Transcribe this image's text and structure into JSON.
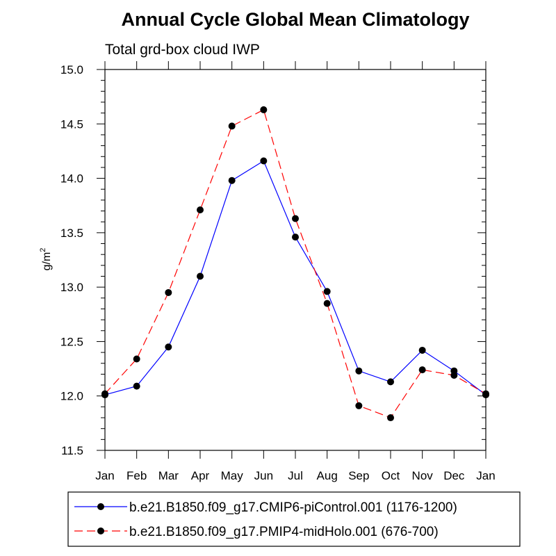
{
  "chart_data": {
    "type": "line",
    "title": "Annual Cycle Global Mean Climatology",
    "subtitle": "Total grd-box cloud IWP",
    "ylabel": "g/m",
    "ylabel_sup": "2",
    "xlabel": "",
    "categories": [
      "Jan",
      "Feb",
      "Mar",
      "Apr",
      "May",
      "Jun",
      "Jul",
      "Aug",
      "Sep",
      "Oct",
      "Nov",
      "Dec",
      "Jan"
    ],
    "ylim": [
      11.5,
      15.0
    ],
    "yticks": [
      "11.5",
      "12.0",
      "12.5",
      "13.0",
      "13.5",
      "14.0",
      "14.5",
      "15.0"
    ],
    "legend_position": "bottom",
    "grid": false,
    "series": [
      {
        "name": "b.e21.B1850.f09_g17.CMIP6-piControl.001 (1176-1200)",
        "color": "#0000ff",
        "line_style": "solid",
        "marker": "filled-circle",
        "values": [
          12.01,
          12.09,
          12.45,
          13.1,
          13.98,
          14.16,
          13.46,
          12.96,
          12.23,
          12.13,
          12.42,
          12.23,
          12.01
        ]
      },
      {
        "name": "b.e21.B1850.f09_g17.PMIP4-midHolo.001 (676-700)",
        "color": "#ff0000",
        "line_style": "dashed",
        "marker": "filled-circle",
        "values": [
          12.02,
          12.34,
          12.95,
          13.71,
          14.48,
          14.63,
          13.63,
          12.85,
          11.91,
          11.8,
          12.24,
          12.19,
          12.02
        ]
      }
    ]
  }
}
